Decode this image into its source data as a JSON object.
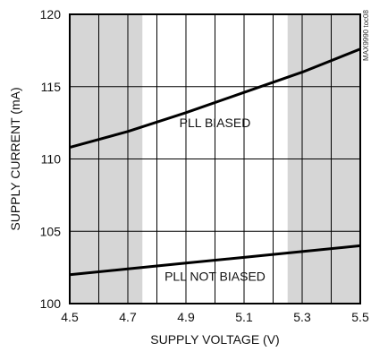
{
  "chart_data": {
    "type": "line",
    "xlabel": "SUPPLY VOLTAGE (V)",
    "ylabel": "SUPPLY CURRENT (mA)",
    "xlim": [
      4.5,
      5.5
    ],
    "ylim": [
      100,
      120
    ],
    "xticks": [
      "4.5",
      "4.7",
      "4.9",
      "5.1",
      "5.3",
      "5.5"
    ],
    "yticks": [
      "100",
      "105",
      "110",
      "115",
      "120"
    ],
    "grid": true,
    "shaded_regions": [
      [
        4.5,
        4.75
      ],
      [
        5.25,
        5.5
      ]
    ],
    "shade_color": "#d6d6d6",
    "series": [
      {
        "x": [
          4.5,
          4.7,
          4.9,
          5.1,
          5.3,
          5.5
        ],
        "y": [
          110.8,
          111.9,
          113.2,
          114.6,
          116.0,
          117.6
        ]
      },
      {
        "x": [
          4.5,
          4.7,
          4.9,
          5.1,
          5.3,
          5.5
        ],
        "y": [
          102.0,
          102.4,
          102.8,
          103.2,
          103.6,
          104.0
        ]
      }
    ],
    "annotations": [
      {
        "text": "PLL BIASED",
        "x": 5.0,
        "y": 112.5
      },
      {
        "text": "PLL NOT BIASED",
        "x": 5.0,
        "y": 101.9
      }
    ],
    "side_label": "MAX9990 toc08"
  }
}
